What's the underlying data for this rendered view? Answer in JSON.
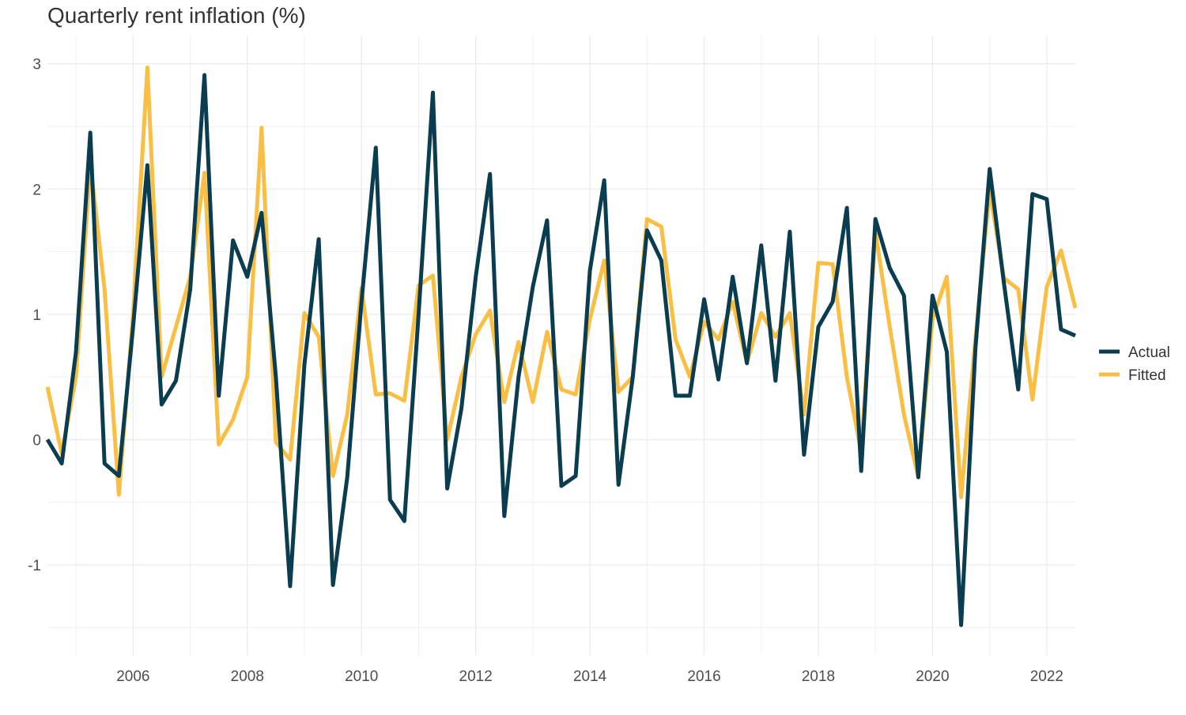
{
  "chart_data": {
    "type": "line",
    "title": "Quarterly rent inflation (%)",
    "xlabel": "",
    "ylabel": "",
    "x_start": "2004-Q3",
    "x_end": "2022-Q3",
    "xlim": [
      2004.5,
      2022.5
    ],
    "ylim": [
      -1.5,
      3.0
    ],
    "x_ticks": [
      2006,
      2008,
      2010,
      2012,
      2014,
      2016,
      2018,
      2020,
      2022
    ],
    "x_tick_labels": [
      "2006",
      "2008",
      "2010",
      "2012",
      "2014",
      "2016",
      "2018",
      "2020",
      "2022"
    ],
    "y_ticks": [
      -1,
      0,
      1,
      2,
      3
    ],
    "y_tick_labels": [
      "-1",
      "0",
      "1",
      "2",
      "3"
    ],
    "grid": true,
    "legend_position": "right",
    "series": [
      {
        "name": "Actual",
        "color": "#0a3d50",
        "values": [
          0.0,
          -0.19,
          0.7,
          2.45,
          -0.19,
          -0.29,
          0.9,
          2.19,
          0.28,
          0.47,
          1.2,
          2.91,
          0.35,
          1.59,
          1.3,
          1.81,
          0.5,
          -1.17,
          0.6,
          1.6,
          -1.16,
          -0.3,
          1.1,
          2.33,
          -0.48,
          -0.65,
          1.0,
          2.77,
          -0.39,
          0.25,
          1.3,
          2.12,
          -0.61,
          0.5,
          1.22,
          1.75,
          -0.37,
          -0.29,
          1.35,
          2.07,
          -0.36,
          0.5,
          1.67,
          1.43,
          0.35,
          0.35,
          1.12,
          0.48,
          1.3,
          0.61,
          1.55,
          0.47,
          1.66,
          -0.12,
          0.9,
          1.1,
          1.85,
          -0.25,
          1.76,
          1.37,
          1.15,
          -0.3,
          1.15,
          0.7,
          -1.48,
          0.72,
          2.16,
          1.25,
          0.4,
          1.96,
          1.92,
          0.88,
          0.83
        ]
      },
      {
        "name": "Fitted",
        "color": "#f9bf45",
        "values": [
          0.42,
          -0.11,
          0.5,
          2.21,
          1.2,
          -0.44,
          1.0,
          2.97,
          0.5,
          0.9,
          1.3,
          2.13,
          -0.04,
          0.16,
          0.5,
          2.49,
          -0.02,
          -0.16,
          1.01,
          0.82,
          -0.29,
          0.2,
          1.21,
          0.36,
          0.37,
          0.31,
          1.23,
          1.31,
          0.0,
          0.5,
          0.84,
          1.03,
          0.3,
          0.78,
          0.3,
          0.86,
          0.4,
          0.36,
          0.96,
          1.43,
          0.38,
          0.5,
          1.76,
          1.7,
          0.8,
          0.5,
          0.94,
          0.8,
          1.1,
          0.61,
          1.01,
          0.82,
          1.01,
          0.2,
          1.41,
          1.4,
          0.5,
          -0.1,
          1.66,
          0.9,
          0.2,
          -0.3,
          0.96,
          1.3,
          -0.46,
          0.8,
          1.99,
          1.29,
          1.2,
          0.32,
          1.22,
          1.51,
          1.05
        ]
      }
    ]
  }
}
